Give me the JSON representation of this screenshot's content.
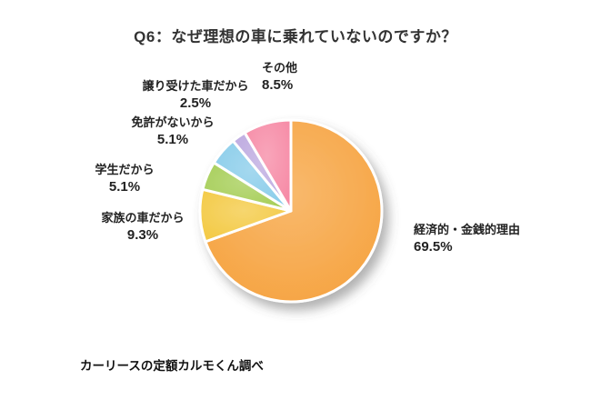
{
  "title": "Q6：なぜ理想の車に乗れていないのですか？",
  "footer": "カーリースの定額カルモくん調べ",
  "chart_data": {
    "type": "pie",
    "title": "Q6：なぜ理想の車に乗れていないのですか？",
    "categories": [
      "経済的・金銭的理由",
      "家族の車だから",
      "学生だから",
      "免許がないから",
      "譲り受けた車だから",
      "その他"
    ],
    "values": [
      69.5,
      9.3,
      5.1,
      5.1,
      2.5,
      8.5
    ],
    "percent_labels": [
      "69.5%",
      "9.3%",
      "5.1%",
      "5.1%",
      "2.5%",
      "8.5%"
    ],
    "colors": [
      "#F6A13C",
      "#F3C83F",
      "#A3CC52",
      "#86CBE9",
      "#BBA7DF",
      "#F687A3"
    ],
    "start_angle_deg": 0,
    "direction": "clockwise",
    "legend_position": "labels-around",
    "source_note": "カーリースの定額カルモくん調べ"
  }
}
